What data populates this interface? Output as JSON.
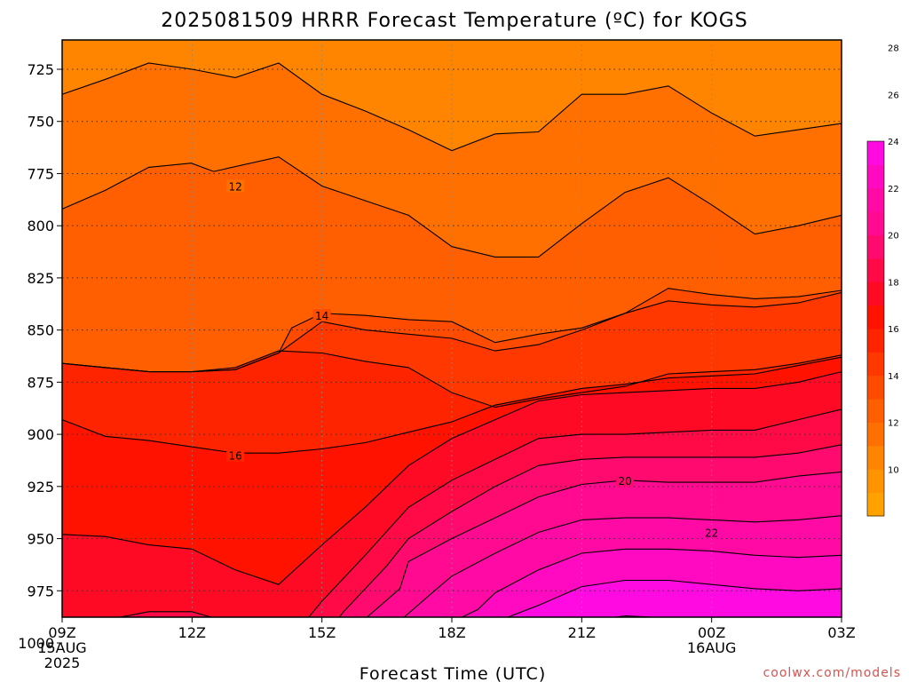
{
  "chart_data": {
    "type": "contour",
    "title": "2025081509 HRRR Forecast Temperature (ºC) for KOGS",
    "xlabel": "Forecast Time (UTC)",
    "credit": "coolwx.com/models",
    "x_ticks": [
      {
        "label": "09Z",
        "sub1": "15AUG",
        "sub2": "2025",
        "hour": 0
      },
      {
        "label": "12Z",
        "sub1": "",
        "sub2": "",
        "hour": 3
      },
      {
        "label": "15Z",
        "sub1": "",
        "sub2": "",
        "hour": 6
      },
      {
        "label": "18Z",
        "sub1": "",
        "sub2": "",
        "hour": 9
      },
      {
        "label": "21Z",
        "sub1": "",
        "sub2": "",
        "hour": 12
      },
      {
        "label": "00Z",
        "sub1": "16AUG",
        "sub2": "",
        "hour": 15
      },
      {
        "label": "03Z",
        "sub1": "",
        "sub2": "",
        "hour": 18
      }
    ],
    "xlim": [
      0,
      18
    ],
    "y_ticks": [
      725,
      750,
      775,
      800,
      825,
      850,
      875,
      900,
      925,
      950,
      975,
      1000
    ],
    "ylim": [
      1010,
      715
    ],
    "contour_interval": 1,
    "colorbar": {
      "ticks": [
        10,
        12,
        14,
        16,
        18,
        20,
        22,
        24,
        26,
        28
      ],
      "colors": [
        "#ffa200",
        "#ff9300",
        "#ff8400",
        "#ff7000",
        "#ff5f00",
        "#ff4b00",
        "#ff3800",
        "#ff2400",
        "#ff1200",
        "#ff0a24",
        "#ff0a46",
        "#ff0a6e",
        "#ff0a90",
        "#ff0aa4",
        "#ff0ac0",
        "#ff0ae0"
      ]
    },
    "contour_labels": [
      {
        "text": "12",
        "hour": 4.0,
        "pres": 781
      },
      {
        "text": "14",
        "hour": 6.0,
        "pres": 843
      },
      {
        "text": "16",
        "hour": 4.0,
        "pres": 910
      },
      {
        "text": "20",
        "hour": 13.0,
        "pres": 922
      },
      {
        "text": "22",
        "hour": 15.0,
        "pres": 947
      }
    ],
    "isotherms": [
      {
        "temp": 11,
        "points": [
          [
            0,
            737
          ],
          [
            0.98,
            730
          ],
          [
            2,
            722
          ],
          [
            3,
            725
          ],
          [
            4,
            729
          ],
          [
            5,
            722
          ],
          [
            6,
            737
          ],
          [
            7,
            745
          ],
          [
            8,
            754
          ],
          [
            9,
            764
          ],
          [
            10,
            756
          ],
          [
            11,
            755
          ],
          [
            12,
            737
          ],
          [
            13,
            737
          ],
          [
            14,
            733
          ],
          [
            15,
            746
          ],
          [
            16,
            757
          ],
          [
            17,
            754
          ],
          [
            18,
            751
          ]
        ]
      },
      {
        "temp": 12,
        "points": [
          [
            0,
            792
          ],
          [
            1,
            783
          ],
          [
            2,
            772
          ],
          [
            2.98,
            770
          ],
          [
            3.5,
            774
          ],
          [
            5,
            767
          ],
          [
            6,
            781
          ],
          [
            7,
            788
          ],
          [
            8,
            795
          ],
          [
            9,
            810
          ],
          [
            10,
            815
          ],
          [
            11,
            815
          ],
          [
            12,
            799
          ],
          [
            13,
            784
          ],
          [
            14,
            777
          ],
          [
            15,
            790
          ],
          [
            16,
            804
          ],
          [
            17,
            800
          ],
          [
            18,
            795
          ]
        ]
      },
      {
        "temp": 13,
        "points": [
          [
            0,
            866
          ],
          [
            1,
            868
          ],
          [
            2,
            870
          ],
          [
            3,
            870
          ],
          [
            4,
            869
          ],
          [
            5,
            861
          ],
          [
            5.3,
            849
          ],
          [
            6,
            842
          ],
          [
            7,
            843
          ],
          [
            8,
            845
          ],
          [
            9,
            846
          ],
          [
            10,
            856
          ],
          [
            11,
            852
          ],
          [
            12,
            849
          ],
          [
            13,
            842
          ],
          [
            14,
            830
          ],
          [
            15,
            833
          ],
          [
            16,
            835
          ],
          [
            17,
            834
          ],
          [
            18,
            831
          ]
        ]
      },
      {
        "temp": 14,
        "points": [
          [
            0,
            866
          ],
          [
            1,
            868
          ],
          [
            2,
            870
          ],
          [
            3,
            870
          ],
          [
            4,
            869
          ],
          [
            5,
            861
          ],
          [
            6,
            846
          ],
          [
            7,
            850
          ],
          [
            8,
            852
          ],
          [
            9,
            854
          ],
          [
            10,
            860
          ],
          [
            11,
            857
          ],
          [
            12,
            850
          ],
          [
            13,
            842
          ],
          [
            14,
            836
          ],
          [
            15,
            838
          ],
          [
            16,
            839
          ],
          [
            17,
            837
          ],
          [
            18,
            832
          ]
        ]
      },
      {
        "temp": 15,
        "points": [
          [
            0,
            866
          ],
          [
            1,
            868
          ],
          [
            2,
            870
          ],
          [
            3,
            870
          ],
          [
            4,
            868
          ],
          [
            5,
            860
          ],
          [
            6,
            861
          ],
          [
            7,
            865
          ],
          [
            8,
            868
          ],
          [
            9,
            880
          ],
          [
            10,
            887
          ],
          [
            11,
            883
          ],
          [
            12,
            880
          ],
          [
            13,
            877
          ],
          [
            14,
            871
          ],
          [
            15,
            870
          ],
          [
            16,
            869
          ],
          [
            17,
            866
          ],
          [
            18,
            862
          ]
        ]
      },
      {
        "temp": 16,
        "points": [
          [
            0,
            893
          ],
          [
            1,
            901
          ],
          [
            2,
            903
          ],
          [
            3,
            906
          ],
          [
            4,
            909
          ],
          [
            5,
            909
          ],
          [
            6,
            907
          ],
          [
            7,
            904
          ],
          [
            8,
            899
          ],
          [
            9,
            894
          ],
          [
            10,
            886
          ],
          [
            11,
            882
          ],
          [
            12,
            878
          ],
          [
            13,
            876
          ],
          [
            14,
            873
          ],
          [
            15,
            872
          ],
          [
            16,
            871
          ],
          [
            17,
            867
          ],
          [
            18,
            863
          ]
        ]
      },
      {
        "temp": 17,
        "points": [
          [
            0,
            948
          ],
          [
            1,
            949
          ],
          [
            2,
            953
          ],
          [
            3,
            955
          ],
          [
            4,
            965
          ],
          [
            5,
            972
          ],
          [
            6,
            953
          ],
          [
            7,
            935
          ],
          [
            8,
            915
          ],
          [
            9,
            902
          ],
          [
            10,
            893
          ],
          [
            11,
            884
          ],
          [
            12,
            881
          ],
          [
            13,
            880
          ],
          [
            14,
            879
          ],
          [
            15,
            878
          ],
          [
            16,
            878
          ],
          [
            17,
            875
          ],
          [
            18,
            870
          ]
        ]
      },
      {
        "temp": 18,
        "points": [
          [
            0,
            996
          ],
          [
            1,
            989
          ],
          [
            2,
            985
          ],
          [
            3,
            985
          ],
          [
            4,
            991
          ],
          [
            5,
            1005
          ],
          [
            6,
            980
          ],
          [
            7,
            958
          ],
          [
            8,
            935
          ],
          [
            9,
            922
          ],
          [
            10,
            912
          ],
          [
            11,
            902
          ],
          [
            12,
            900
          ],
          [
            13,
            900
          ],
          [
            14,
            899
          ],
          [
            15,
            898
          ],
          [
            16,
            898
          ],
          [
            17,
            893
          ],
          [
            18,
            888
          ]
        ]
      },
      {
        "temp": 19,
        "points": [
          [
            0,
            1002
          ],
          [
            1,
            998
          ],
          [
            2,
            997
          ],
          [
            3,
            999
          ],
          [
            3.5,
            1005
          ],
          [
            5.6,
            1009
          ],
          [
            6.5,
            985
          ],
          [
            7.5,
            963
          ],
          [
            8,
            950
          ],
          [
            9,
            937
          ],
          [
            10,
            925
          ],
          [
            11,
            915
          ],
          [
            12,
            912
          ],
          [
            13,
            911
          ],
          [
            14,
            911
          ],
          [
            15,
            911
          ],
          [
            16,
            911
          ],
          [
            17,
            909
          ],
          [
            18,
            905
          ]
        ]
      },
      {
        "temp": 20,
        "points": [
          [
            5.8,
            1009
          ],
          [
            6.8,
            992
          ],
          [
            7.8,
            974
          ],
          [
            8,
            961
          ],
          [
            9,
            950
          ],
          [
            10,
            940
          ],
          [
            11,
            930
          ],
          [
            12,
            924
          ],
          [
            13,
            922
          ],
          [
            14,
            923
          ],
          [
            15,
            923
          ],
          [
            16,
            923
          ],
          [
            17,
            920
          ],
          [
            18,
            918
          ]
        ]
      },
      {
        "temp": 21,
        "points": [
          [
            6.6,
            1009
          ],
          [
            7.6,
            993
          ],
          [
            8.6,
            975
          ],
          [
            9,
            968
          ],
          [
            10,
            957
          ],
          [
            11,
            947
          ],
          [
            12,
            941
          ],
          [
            13,
            940
          ],
          [
            14,
            940
          ],
          [
            15,
            941
          ],
          [
            16,
            942
          ],
          [
            17,
            941
          ],
          [
            18,
            939
          ]
        ]
      },
      {
        "temp": 22,
        "points": [
          [
            7.6,
            1009
          ],
          [
            8.6,
            994
          ],
          [
            9.6,
            984
          ],
          [
            10,
            976
          ],
          [
            11,
            965
          ],
          [
            12,
            957
          ],
          [
            13,
            955
          ],
          [
            14,
            955
          ],
          [
            15,
            956
          ],
          [
            16,
            958
          ],
          [
            17,
            959
          ],
          [
            18,
            958
          ]
        ]
      },
      {
        "temp": 23,
        "points": [
          [
            8.6,
            1009
          ],
          [
            9.6,
            997
          ],
          [
            10,
            990
          ],
          [
            11,
            982
          ],
          [
            12,
            973
          ],
          [
            13,
            970
          ],
          [
            14,
            970
          ],
          [
            15,
            972
          ],
          [
            16,
            974
          ],
          [
            17,
            975
          ],
          [
            18,
            974
          ]
        ]
      },
      {
        "temp": 24,
        "points": [
          [
            9.6,
            1009
          ],
          [
            10.4,
            1001
          ],
          [
            11,
            996
          ],
          [
            12,
            990
          ],
          [
            13,
            987
          ],
          [
            14,
            988
          ],
          [
            15,
            991
          ],
          [
            16,
            991
          ],
          [
            17,
            992
          ],
          [
            18,
            991
          ]
        ]
      },
      {
        "temp": 25,
        "points": [
          [
            11,
            1009
          ],
          [
            12,
            1004
          ],
          [
            13,
            1002
          ],
          [
            14,
            1002
          ],
          [
            15,
            1003
          ],
          [
            16,
            1005
          ],
          [
            16.4,
            1008
          ],
          [
            18,
            1006
          ]
        ]
      }
    ],
    "ground": {
      "pres": 1008,
      "color": "#a0522d"
    }
  }
}
